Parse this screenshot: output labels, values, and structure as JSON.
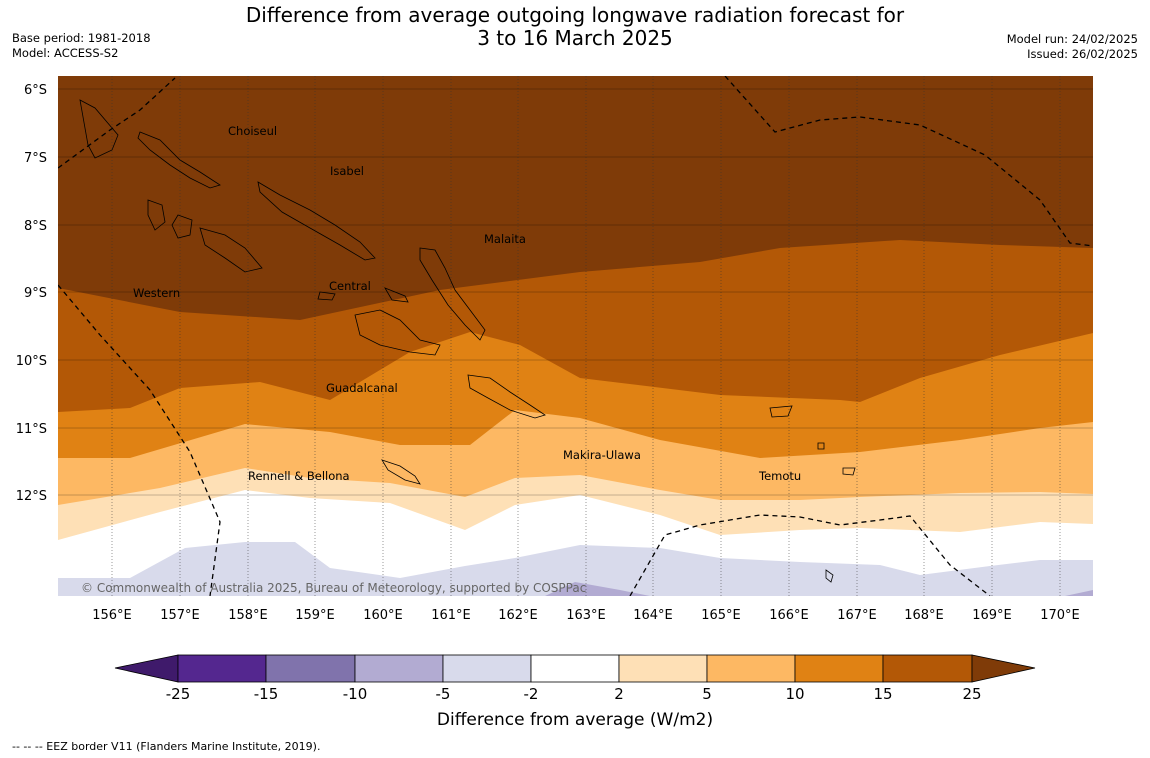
{
  "title_line1": "Difference from average outgoing longwave radiation forecast for",
  "title_line2": "3 to 16 March 2025",
  "meta_left": [
    "Base period: 1981-2018",
    "Model: ACCESS-S2"
  ],
  "meta_right": [
    "Model run: 24/02/2025",
    "Issued: 26/02/2025"
  ],
  "latitudes": [
    "6°S",
    "7°S",
    "8°S",
    "9°S",
    "10°S",
    "11°S",
    "12°S"
  ],
  "longitudes": [
    "156°E",
    "157°E",
    "158°E",
    "159°E",
    "160°E",
    "161°E",
    "162°E",
    "163°E",
    "164°E",
    "165°E",
    "166°E",
    "167°E",
    "168°E",
    "169°E",
    "170°E"
  ],
  "places": [
    "Choiseul",
    "Isabel",
    "Malaita",
    "Western",
    "Central",
    "Guadalcanal",
    "Makira-Ulawa",
    "Temotu",
    "Rennell & Bellona"
  ],
  "copyright": "© Commonwealth of Australia 2025, Bureau of Meteorology, supported by COSPPac",
  "colorbar": {
    "title": "Difference from average (W/m2)",
    "ticks": [
      "-25",
      "-15",
      "-10",
      "-5",
      "-2",
      "2",
      "5",
      "10",
      "15",
      "25"
    ],
    "colors": [
      "#3f1a6b",
      "#54278f",
      "#8073ac",
      "#b2abd2",
      "#d8daeb",
      "#ffffff",
      "#fee0b6",
      "#fdb863",
      "#e08214",
      "#b35806",
      "#7f3b08"
    ]
  },
  "footer": "--  --  -- EEZ border V11 (Flanders Marine Institute, 2019)."
}
